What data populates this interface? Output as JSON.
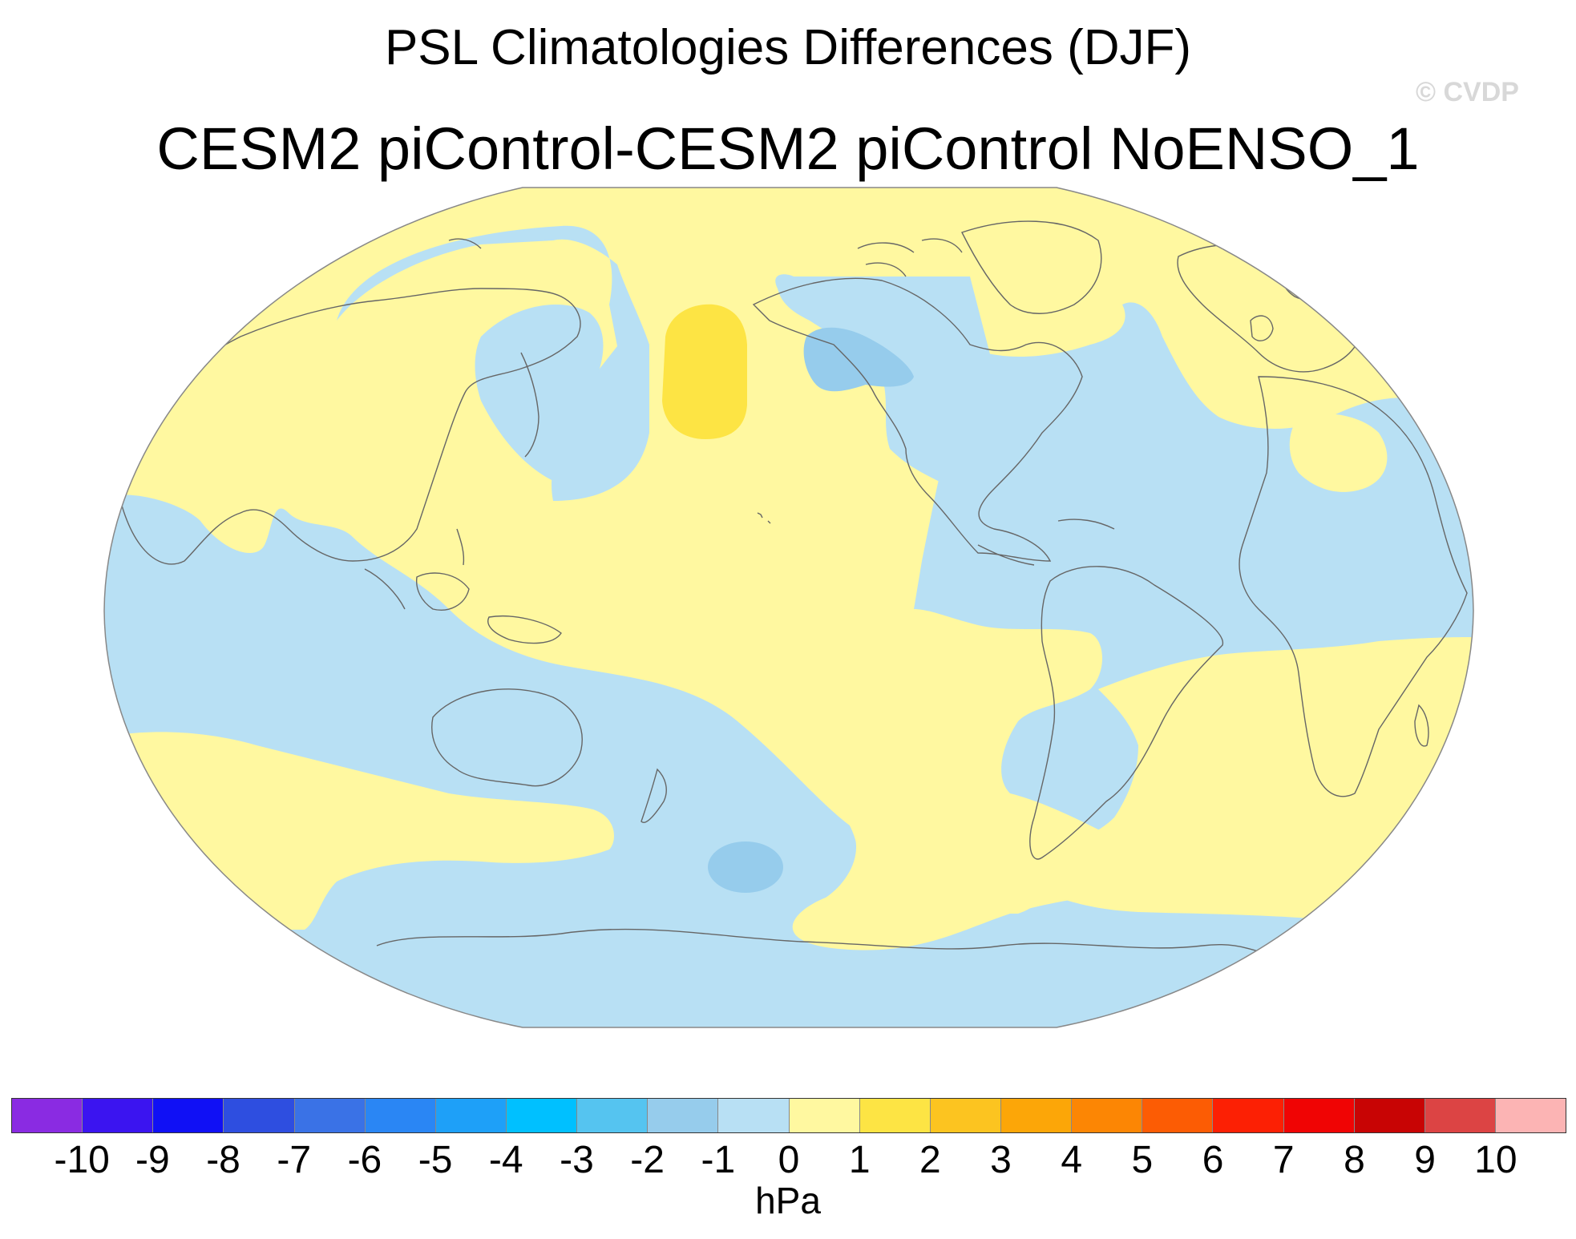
{
  "title": "PSL Climatologies Differences (DJF)",
  "subtitle": "CESM2 piControl-CESM2 piControl NoENSO_1",
  "watermark": "© CVDP",
  "colorbar": {
    "units": "hPa",
    "ticks": [
      "-10",
      "-9",
      "-8",
      "-7",
      "-6",
      "-5",
      "-4",
      "-3",
      "-2",
      "-1",
      "0",
      "1",
      "2",
      "3",
      "4",
      "5",
      "6",
      "7",
      "8",
      "9",
      "10"
    ],
    "colors": [
      "#8a2be2",
      "#3b14f0",
      "#1010f5",
      "#2e4ee0",
      "#3a72e6",
      "#2a86f4",
      "#1ea0f8",
      "#00c0ff",
      "#55c4f0",
      "#96ccec",
      "#b8e0f4",
      "#fff8a0",
      "#fde444",
      "#fcc420",
      "#fca608",
      "#fc8604",
      "#fc5c04",
      "#fc2004",
      "#f00404",
      "#c80404",
      "#dc4444",
      "#fcb4b4"
    ]
  },
  "map": {
    "projection": "Robinson-like, Pacific-centered",
    "variable": "PSL",
    "season": "DJF",
    "ocean_default_level": "0 to 1 (positive)",
    "colors": {
      "positive_1": "#fff8a0",
      "positive_2": "#fde444",
      "negative_1": "#b8e0f4",
      "negative_2": "#96ccec",
      "coast": "#666666",
      "border": "#888888"
    }
  }
}
